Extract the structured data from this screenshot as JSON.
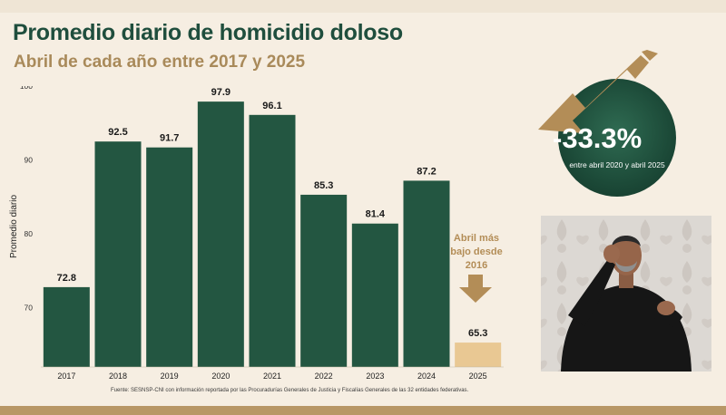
{
  "title": "Promedio diario de homicidio doloso",
  "subtitle": "Abril de cada año entre 2017 y 2025",
  "chart_data": {
    "type": "bar",
    "title": "Promedio diario de homicidio doloso",
    "subtitle": "Abril de cada año entre 2017 y 2025",
    "ylabel": "Promedio diario",
    "xlabel": "",
    "categories": [
      "2017",
      "2018",
      "2019",
      "2020",
      "2021",
      "2022",
      "2023",
      "2024",
      "2025"
    ],
    "values": [
      72.8,
      92.5,
      91.7,
      97.9,
      96.1,
      85.3,
      81.4,
      87.2,
      65.3
    ],
    "value_labels": [
      "72.8",
      "92.5",
      "91.7",
      "97.9",
      "96.1",
      "85.3",
      "81.4",
      "87.2",
      "65.3"
    ],
    "ylim": [
      62,
      100
    ],
    "yticks": [
      70,
      80,
      90,
      100
    ],
    "grid": false,
    "bar_color": "#235641",
    "highlight_color": "#e9c893",
    "highlight_category": "2025"
  },
  "callouts": {
    "change_value": "-33.3%",
    "change_note": "entre abril 2020 y abril 2025",
    "lowest_note": "Abril más bajo desde 2016"
  },
  "source": "Fuente: SESNSP-CNI con información reportada por las Procuradurías Generales de Justicia y Fiscalías Generales de las 32 entidades federativas.",
  "colors": {
    "title": "#1f4e3d",
    "subtitle": "#a98a5a",
    "accent_gold": "#b38d57",
    "circle": "#1c4a38",
    "background": "#f6eee2"
  }
}
